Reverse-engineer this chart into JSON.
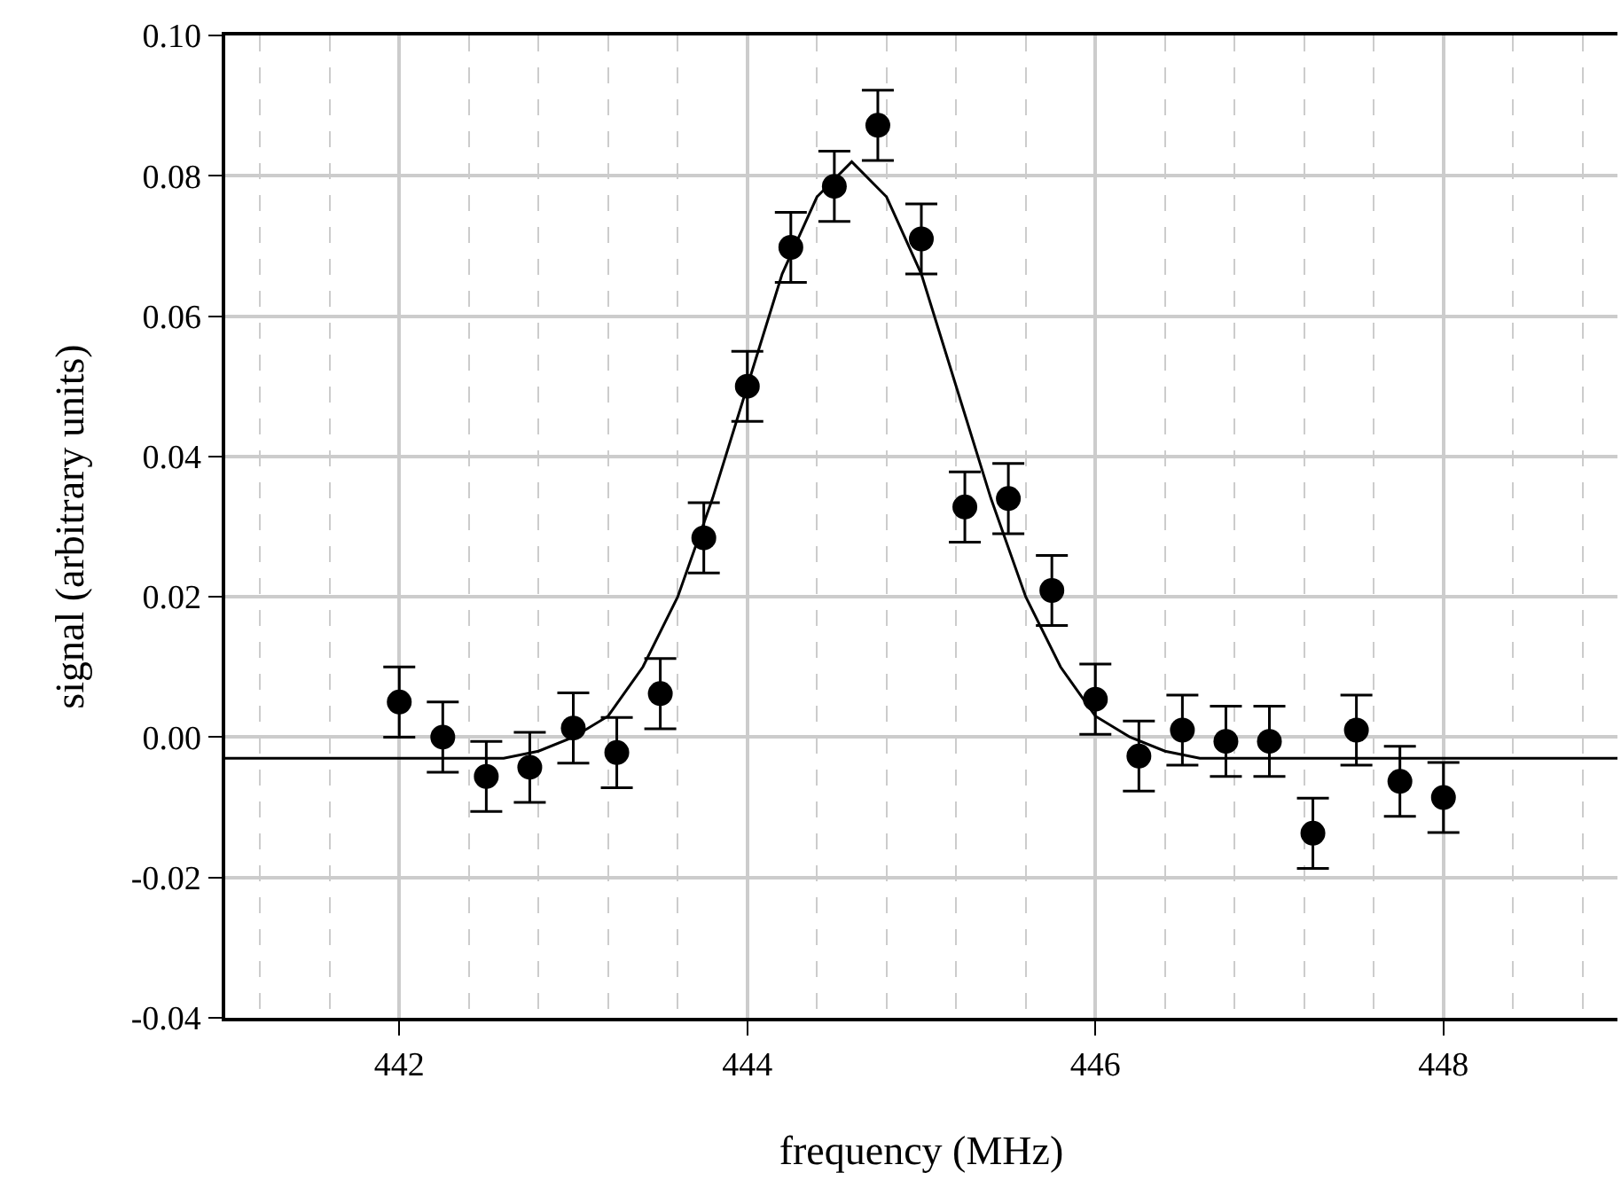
{
  "chart_data": {
    "type": "scatter",
    "xlabel": "frequency (MHz)",
    "ylabel": "signal (arbitrary units)",
    "xlim": [
      441,
      449
    ],
    "xticks": [
      442,
      444,
      446,
      448
    ],
    "ylim": [
      -0.04,
      0.1
    ],
    "yticks": [
      {
        "value": -0.04,
        "label": "-0.04"
      },
      {
        "value": -0.02,
        "label": "-0.02"
      },
      {
        "value": 0,
        "label": "0.00"
      },
      {
        "value": 0.02,
        "label": "0.02"
      },
      {
        "value": 0.04,
        "label": "0.04"
      },
      {
        "value": 0.06,
        "label": "0.06"
      },
      {
        "value": 0.08,
        "label": "0.08"
      },
      {
        "value": 0.1,
        "label": "0.10"
      }
    ],
    "grid": true,
    "marker": "circle",
    "series": [
      {
        "color": "#000000",
        "x": [
          442,
          442.25,
          442.5,
          442.75,
          443,
          443.25,
          443.5,
          443.75,
          444,
          444.25,
          444.5,
          444.75,
          445,
          445.25,
          445.5,
          445.75,
          446,
          446.25,
          446.5,
          446.75,
          447,
          447.25,
          447.5,
          447.75,
          448
        ],
        "values": [
          0.005,
          0.0,
          -0.0056,
          -0.0043,
          0.0013,
          -0.0022,
          0.0062,
          0.0284,
          0.05,
          0.0698,
          0.0785,
          0.0872,
          0.071,
          0.0328,
          0.034,
          0.0209,
          0.0054,
          -0.0027,
          0.001,
          -0.0006,
          -0.0006,
          -0.0137,
          0.001,
          -0.0063,
          -0.0086
        ],
        "errors": [
          0.005,
          0.005,
          0.005,
          0.005,
          0.005,
          0.005,
          0.005,
          0.005,
          0.005,
          0.005,
          0.005,
          0.005,
          0.005,
          0.005,
          0.005,
          0.005,
          0.005,
          0.005,
          0.005,
          0.005,
          0.005,
          0.005,
          0.005,
          0.005,
          0.005
        ]
      },
      {
        "type": "line",
        "color": "#000000",
        "line_style": "solid",
        "marker": "none",
        "x": [
          441,
          442.2,
          442.6,
          442.8,
          443,
          443.2,
          443.4,
          443.6,
          443.8,
          444,
          444.2,
          444.4,
          444.6,
          444.8,
          445,
          445.2,
          445.4,
          445.6,
          445.8,
          446,
          446.2,
          446.4,
          446.6,
          447,
          449
        ],
        "values": [
          -0.003,
          -0.003,
          -0.003,
          -0.002,
          0.0,
          0.003,
          0.01,
          0.02,
          0.034,
          0.05,
          0.066,
          0.077,
          0.082,
          0.077,
          0.066,
          0.05,
          0.034,
          0.02,
          0.01,
          0.003,
          0.0,
          -0.002,
          -0.003,
          -0.003,
          -0.003
        ]
      }
    ]
  }
}
